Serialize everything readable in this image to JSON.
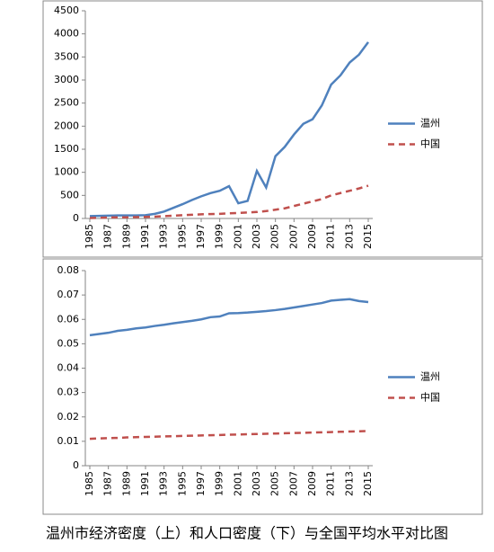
{
  "chart_data": [
    {
      "type": "line",
      "x": [
        1985,
        1986,
        1987,
        1988,
        1989,
        1990,
        1991,
        1992,
        1993,
        1994,
        1995,
        1996,
        1997,
        1998,
        1999,
        2000,
        2001,
        2002,
        2003,
        2004,
        2005,
        2006,
        2007,
        2008,
        2009,
        2010,
        2011,
        2012,
        2013,
        2014,
        2015
      ],
      "xlim": [
        1985,
        2015
      ],
      "xticks": [
        1985,
        1987,
        1989,
        1991,
        1993,
        1995,
        1997,
        1999,
        2001,
        2003,
        2005,
        2007,
        2009,
        2011,
        2013,
        2015
      ],
      "ylim": [
        0,
        4500
      ],
      "yticks": [
        0,
        500,
        1000,
        1500,
        2000,
        2500,
        3000,
        3500,
        4000,
        4500
      ],
      "grid": false,
      "legend": "right",
      "series": [
        {
          "name": "温州",
          "color": "#4f81bd",
          "dash": false,
          "values": [
            50,
            55,
            60,
            65,
            65,
            65,
            70,
            100,
            150,
            230,
            310,
            400,
            480,
            550,
            600,
            700,
            330,
            380,
            1030,
            670,
            1350,
            1550,
            1820,
            2050,
            2150,
            2450,
            2900,
            3100,
            3380,
            3550,
            3820
          ]
        },
        {
          "name": "中国",
          "color": "#c0504d",
          "dash": true,
          "values": [
            10,
            15,
            20,
            25,
            25,
            30,
            35,
            40,
            50,
            60,
            70,
            80,
            90,
            95,
            100,
            110,
            120,
            130,
            140,
            160,
            190,
            220,
            270,
            320,
            370,
            420,
            500,
            550,
            600,
            650,
            710
          ]
        }
      ]
    },
    {
      "type": "line",
      "x": [
        1985,
        1986,
        1987,
        1988,
        1989,
        1990,
        1991,
        1992,
        1993,
        1994,
        1995,
        1996,
        1997,
        1998,
        1999,
        2000,
        2001,
        2002,
        2003,
        2004,
        2005,
        2006,
        2007,
        2008,
        2009,
        2010,
        2011,
        2012,
        2013,
        2014,
        2015
      ],
      "xlim": [
        1985,
        2015
      ],
      "xticks": [
        1985,
        1987,
        1989,
        1991,
        1993,
        1995,
        1997,
        1999,
        2001,
        2003,
        2005,
        2007,
        2009,
        2011,
        2013,
        2015
      ],
      "ylim": [
        0,
        0.08
      ],
      "yticks": [
        0,
        0.01,
        0.02,
        0.03,
        0.04,
        0.05,
        0.06,
        0.07,
        0.08
      ],
      "grid": false,
      "legend": "right",
      "series": [
        {
          "name": "温州",
          "color": "#4f81bd",
          "dash": false,
          "values": [
            0.0535,
            0.054,
            0.0545,
            0.0553,
            0.0557,
            0.0563,
            0.0567,
            0.0573,
            0.0578,
            0.0584,
            0.0589,
            0.0594,
            0.06,
            0.0609,
            0.0612,
            0.0625,
            0.0626,
            0.0628,
            0.0631,
            0.0634,
            0.0638,
            0.0643,
            0.0649,
            0.0655,
            0.0661,
            0.0667,
            0.0677,
            0.068,
            0.0683,
            0.0675,
            0.0671
          ]
        },
        {
          "name": "中国",
          "color": "#c0504d",
          "dash": true,
          "values": [
            0.011,
            0.0112,
            0.0113,
            0.0114,
            0.0116,
            0.0117,
            0.0118,
            0.0119,
            0.012,
            0.0121,
            0.0122,
            0.0123,
            0.0124,
            0.0125,
            0.0126,
            0.0127,
            0.0128,
            0.0129,
            0.013,
            0.0131,
            0.0132,
            0.0133,
            0.0134,
            0.0135,
            0.0136,
            0.0137,
            0.0138,
            0.0139,
            0.014,
            0.0141,
            0.0142
          ]
        }
      ]
    }
  ],
  "caption": "温州市经济密度（上）和人口密度（下）与全国平均水平对比图"
}
